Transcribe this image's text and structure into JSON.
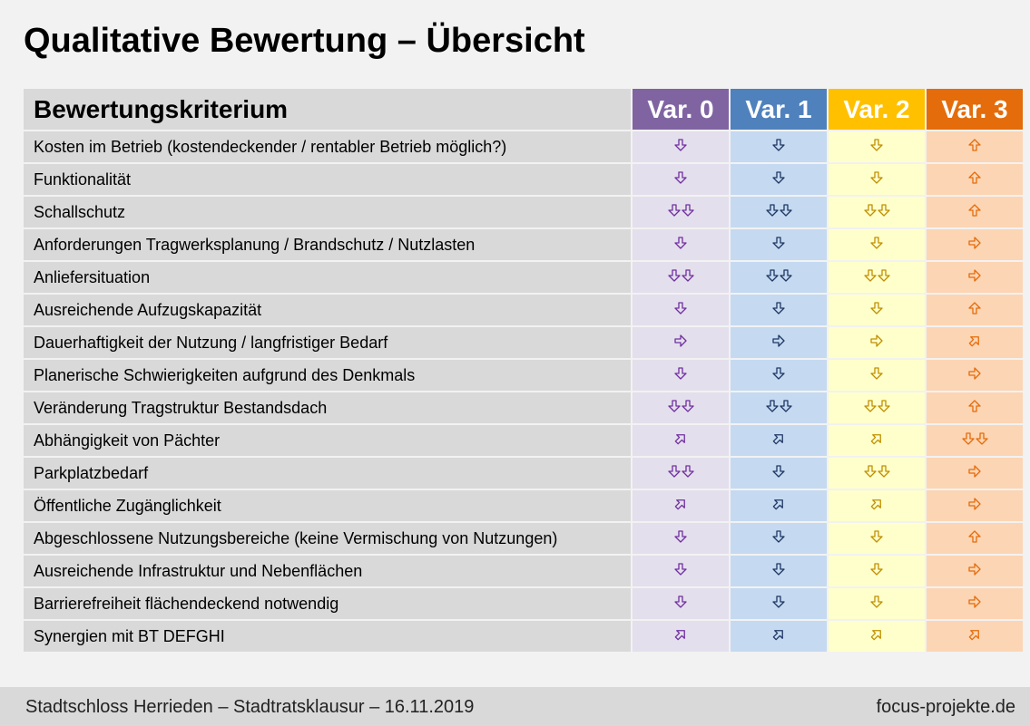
{
  "title": "Qualitative Bewertung – Übersicht",
  "table": {
    "header": {
      "criterion": "Bewertungskriterium",
      "variants": [
        {
          "label": "Var. 0",
          "color": "#8064a2",
          "cell_bg": "#e4dfec",
          "arrow_color": "#7030a0"
        },
        {
          "label": "Var. 1",
          "color": "#4f81bd",
          "cell_bg": "#c5d9f1",
          "arrow_color": "#1f3864"
        },
        {
          "label": "Var. 2",
          "color": "#ffc000",
          "cell_bg": "#ffffcc",
          "arrow_color": "#bf9000"
        },
        {
          "label": "Var. 3",
          "color": "#e46c0a",
          "cell_bg": "#fcd5b4",
          "arrow_color": "#e46c0a"
        }
      ]
    },
    "rows": [
      {
        "criterion": "Kosten im Betrieb (kostendeckender / rentabler Betrieb möglich?)",
        "ratings": [
          "down",
          "down",
          "down",
          "up"
        ]
      },
      {
        "criterion": "Funktionalität",
        "ratings": [
          "down",
          "down",
          "down",
          "up"
        ]
      },
      {
        "criterion": "Schallschutz",
        "ratings": [
          "down-down",
          "down-down",
          "down-down",
          "up"
        ]
      },
      {
        "criterion": "Anforderungen Tragwerksplanung / Brandschutz / Nutzlasten",
        "ratings": [
          "down",
          "down",
          "down",
          "right"
        ]
      },
      {
        "criterion": "Anliefersituation",
        "ratings": [
          "down-down",
          "down-down",
          "down-down",
          "right"
        ]
      },
      {
        "criterion": "Ausreichende Aufzugskapazität",
        "ratings": [
          "down",
          "down",
          "down",
          "up"
        ]
      },
      {
        "criterion": "Dauerhaftigkeit der Nutzung / langfristiger Bedarf",
        "ratings": [
          "right",
          "right",
          "right",
          "up-right"
        ]
      },
      {
        "criterion": "Planerische Schwierigkeiten aufgrund des Denkmals",
        "ratings": [
          "down",
          "down",
          "down",
          "right"
        ]
      },
      {
        "criterion": "Veränderung Tragstruktur Bestandsdach",
        "ratings": [
          "down-down",
          "down-down",
          "down-down",
          "up"
        ]
      },
      {
        "criterion": "Abhängigkeit von Pächter",
        "ratings": [
          "up-right",
          "up-right",
          "up-right",
          "down-down"
        ]
      },
      {
        "criterion": "Parkplatzbedarf",
        "ratings": [
          "down-down",
          "down",
          "down-down",
          "right"
        ]
      },
      {
        "criterion": "Öffentliche Zugänglichkeit",
        "ratings": [
          "up-right",
          "up-right",
          "up-right",
          "right"
        ]
      },
      {
        "criterion": "Abgeschlossene Nutzungsbereiche (keine Vermischung von Nutzungen)",
        "ratings": [
          "down",
          "down",
          "down",
          "up"
        ]
      },
      {
        "criterion": "Ausreichende Infrastruktur und Nebenflächen",
        "ratings": [
          "down",
          "down",
          "down",
          "right"
        ]
      },
      {
        "criterion": "Barrierefreiheit flächendeckend notwendig",
        "ratings": [
          "down",
          "down",
          "down",
          "right"
        ]
      },
      {
        "criterion": "Synergien mit BT DEFGHI",
        "ratings": [
          "up-right",
          "up-right",
          "up-right",
          "up-right"
        ]
      }
    ]
  },
  "footer": {
    "left": "Stadtschloss Herrieden – Stadtratsklausur – 16.11.2019",
    "right": "focus-projekte.de"
  }
}
